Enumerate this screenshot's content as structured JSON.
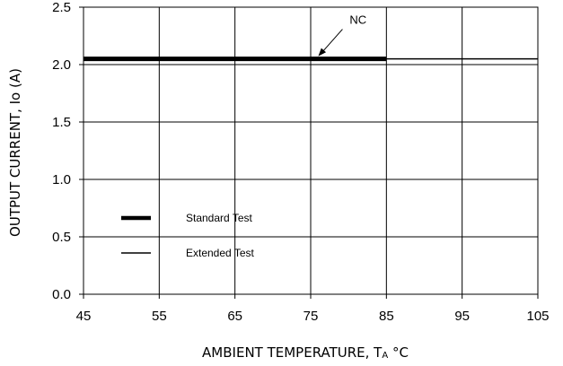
{
  "chart_data": {
    "type": "line",
    "xlabel": "AMBIENT TEMPERATURE, T",
    "xlabel_sub": "A",
    "xlabel_unit": " °C",
    "ylabel": "OUTPUT CURRENT, Io  (A)",
    "xlim": [
      45,
      105
    ],
    "ylim": [
      0,
      2.5
    ],
    "x_ticks": [
      45,
      55,
      65,
      75,
      85,
      95,
      105
    ],
    "x_tick_labels": [
      "45",
      "55",
      "65",
      "75",
      "85",
      "95",
      "105"
    ],
    "y_ticks": [
      0,
      0.5,
      1.0,
      1.5,
      2.0,
      2.5
    ],
    "y_tick_labels": [
      "0.0",
      "0.5",
      "1.0",
      "1.5",
      "2.0",
      "2.5"
    ],
    "grid": true,
    "series": [
      {
        "name": "Standard Test",
        "style": "thick",
        "x": [
          45,
          85
        ],
        "y": [
          2.05,
          2.05
        ]
      },
      {
        "name": "Extended Test",
        "style": "thin",
        "x": [
          45,
          105
        ],
        "y": [
          2.05,
          2.05
        ]
      }
    ],
    "annotations": [
      {
        "text": "NC",
        "arrow_to": [
          76,
          2.05
        ]
      }
    ],
    "legend_position": "lower-left"
  }
}
